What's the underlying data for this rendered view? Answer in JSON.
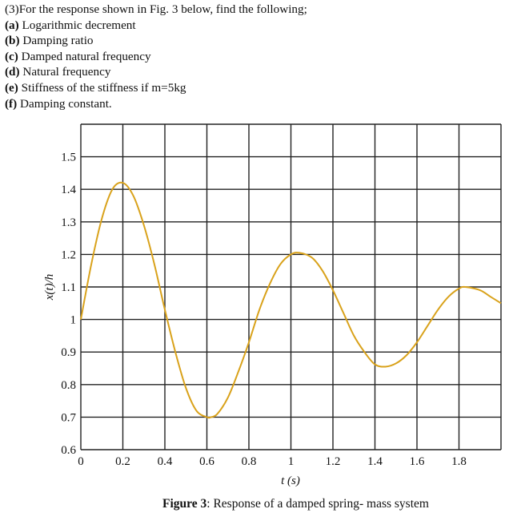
{
  "question": {
    "intro": "(3)For the response shown in Fig. 3 below, find the following;",
    "items": [
      {
        "tag": "(a)",
        "text": " Logarithmic decrement"
      },
      {
        "tag": "(b)",
        "text": " Damping ratio"
      },
      {
        "tag": "(c)",
        "text": " Damped natural frequency"
      },
      {
        "tag": "(d)",
        "text": " Natural frequency"
      },
      {
        "tag": "(e)",
        "text": " Stiffness of the stiffness if m=5kg"
      },
      {
        "tag": "(f)",
        "text": " Damping constant."
      }
    ]
  },
  "caption": {
    "label": "Figure 3",
    "text": ": Response of a damped spring- mass system"
  },
  "chart_data": {
    "type": "line",
    "title": "Figure 3: Response of a damped spring- mass system",
    "xlabel": "t (s)",
    "ylabel": "x(t)/h",
    "xlim": [
      0,
      2.0
    ],
    "ylim": [
      0.6,
      1.6
    ],
    "grid": true,
    "legend": null,
    "x_ticks": [
      "0",
      "0.2",
      "0.4",
      "0.6",
      "0.8",
      "1",
      "1.2",
      "1.4",
      "1.6",
      "1.8"
    ],
    "y_ticks": [
      "0.6",
      "0.7",
      "0.8",
      "0.9",
      "1",
      "1.1",
      "1.2",
      "1.3",
      "1.4",
      "1.5"
    ],
    "line_color": "#D9A21B",
    "extrema": [
      {
        "type": "peak",
        "t": 0.2,
        "value": 1.42
      },
      {
        "type": "trough",
        "t": 0.62,
        "value": 0.7
      },
      {
        "type": "peak",
        "t": 1.04,
        "value": 1.2
      },
      {
        "type": "trough",
        "t": 1.45,
        "value": 0.855
      },
      {
        "type": "peak",
        "t": 1.83,
        "value": 1.1
      }
    ],
    "series": [
      {
        "name": "x(t)/h",
        "x": [
          0,
          0.05,
          0.1,
          0.15,
          0.2,
          0.25,
          0.3,
          0.35,
          0.4,
          0.45,
          0.5,
          0.55,
          0.6,
          0.62,
          0.65,
          0.7,
          0.75,
          0.8,
          0.85,
          0.9,
          0.95,
          1.0,
          1.04,
          1.1,
          1.15,
          1.2,
          1.25,
          1.3,
          1.35,
          1.4,
          1.45,
          1.5,
          1.55,
          1.6,
          1.65,
          1.7,
          1.75,
          1.8,
          1.83,
          1.9,
          1.95,
          2.0
        ],
        "values": [
          1.0,
          1.17,
          1.31,
          1.4,
          1.42,
          1.38,
          1.29,
          1.17,
          1.03,
          0.9,
          0.79,
          0.72,
          0.7,
          0.7,
          0.71,
          0.76,
          0.84,
          0.93,
          1.03,
          1.11,
          1.17,
          1.2,
          1.205,
          1.19,
          1.15,
          1.09,
          1.02,
          0.95,
          0.9,
          0.862,
          0.855,
          0.865,
          0.89,
          0.93,
          0.98,
          1.03,
          1.07,
          1.095,
          1.1,
          1.09,
          1.07,
          1.05
        ]
      }
    ]
  }
}
